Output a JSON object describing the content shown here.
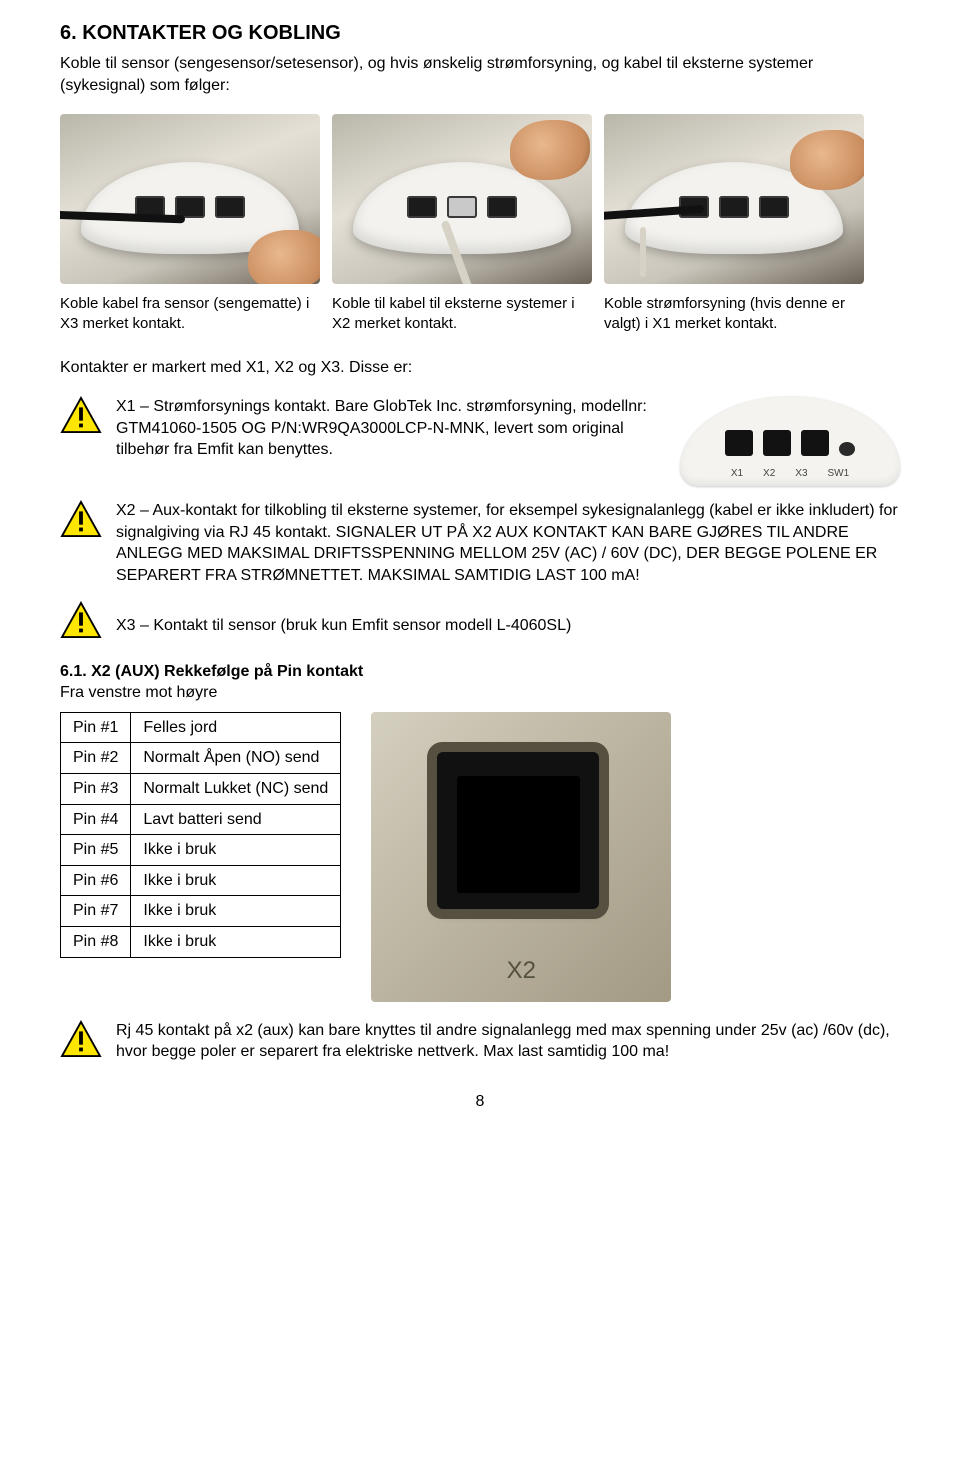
{
  "section": {
    "number": "6.",
    "title": "KONTAKTER OG KOBLING",
    "intro": "Koble til sensor (sengesensor/setesensor), og hvis ønskelig strømforsyning, og kabel til eksterne systemer (sykesignal) som følger:"
  },
  "captions": [
    "Koble kabel fra sensor (sengematte) i X3 merket kontakt.",
    "Koble til kabel til eksterne systemer i X2 merket kontakt.",
    "Koble strømforsyning (hvis denne er valgt) i X1 merket kontakt."
  ],
  "markedLine": "Kontakter er markert med X1, X2 og X3. Disse er:",
  "warnings": [
    "X1 – Strømforsynings kontakt. Bare GlobTek Inc. strømforsyning, modellnr: GTM41060-1505 OG P/N:WR9QA3000LCP-N-MNK, levert som original tilbehør fra Emfit kan benyttes.",
    "X2 – Aux-kontakt for tilkobling til eksterne systemer, for eksempel sykesignalanlegg (kabel er ikke inkludert) for signalgiving via RJ 45 kontakt. SIGNALER UT PÅ X2 AUX KONTAKT KAN BARE GJØRES TIL ANDRE ANLEGG MED MAKSIMAL DRIFTSSPENNING MELLOM 25V (AC) / 60V (DC), DER BEGGE POLENE ER SEPARERT FRA STRØMNETTET. MAKSIMAL SAMTIDIG LAST 100 mA!",
    "X3 – Kontakt til sensor (bruk kun Emfit sensor modell L-4060SL)"
  ],
  "diagramLabels": [
    "X1",
    "X2",
    "X3",
    "SW1"
  ],
  "subsection": {
    "title": "6.1. X2 (AUX) Rekkefølge på Pin kontakt",
    "note": "Fra venstre mot høyre"
  },
  "pinTable": [
    [
      "Pin #1",
      "Felles jord"
    ],
    [
      "Pin #2",
      "Normalt Åpen (NO) send"
    ],
    [
      "Pin #3",
      "Normalt Lukket (NC) send"
    ],
    [
      "Pin #4",
      "Lavt batteri send"
    ],
    [
      "Pin #5",
      "Ikke i bruk"
    ],
    [
      "Pin #6",
      "Ikke i bruk"
    ],
    [
      "Pin #7",
      "Ikke i bruk"
    ],
    [
      "Pin #8",
      "Ikke i bruk"
    ]
  ],
  "x2Label": "X2",
  "footnote": "Rj 45 kontakt på x2 (aux) kan bare knyttes til andre signalanlegg med max spenning under 25v (ac) /60v (dc), hvor begge poler er separert fra elektriske nettverk. Max last samtidig 100 ma!",
  "pageNumber": "8",
  "colors": {
    "text": "#000000",
    "background": "#ffffff",
    "warnFill": "#ffe600",
    "warnStroke": "#000000",
    "tableBorder": "#000000"
  }
}
